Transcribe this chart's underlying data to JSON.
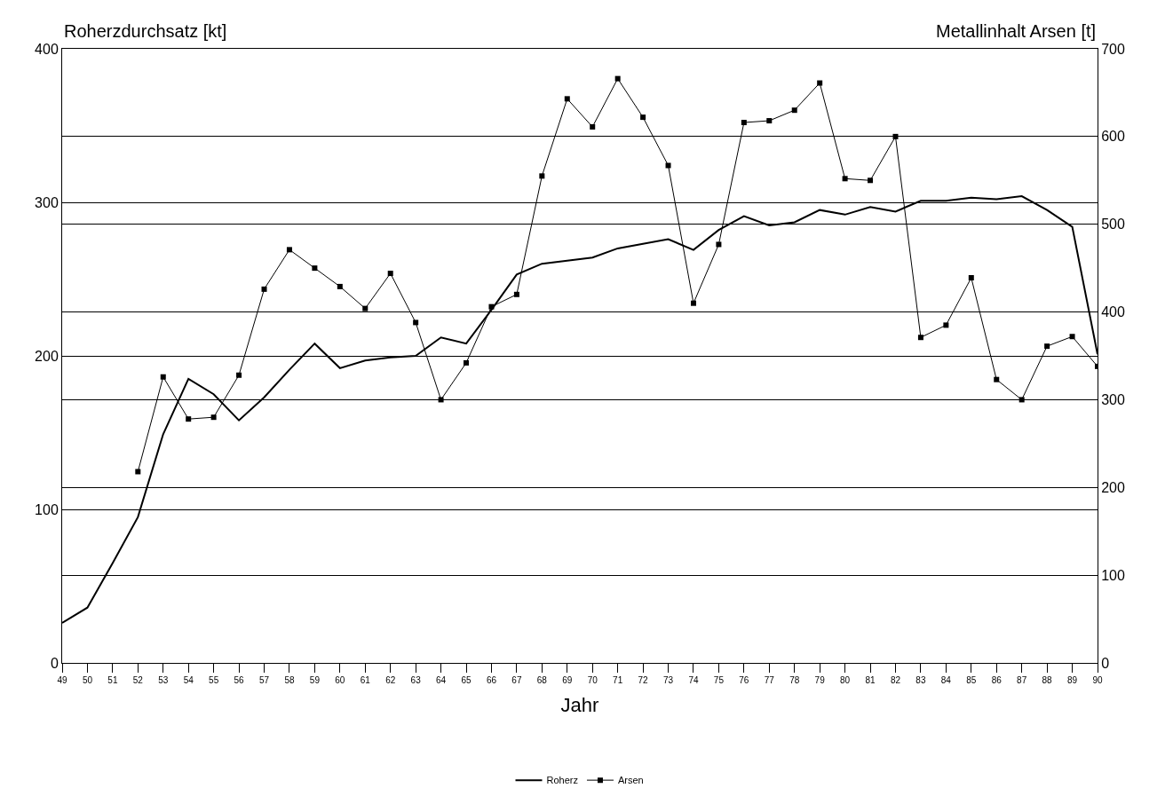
{
  "chart_data": {
    "type": "line",
    "xlabel": "Jahr",
    "ylabel": "Roherzdurchsatz [kt]",
    "y2label": "Metallinhalt Arsen [t]",
    "x": [
      49,
      50,
      51,
      52,
      53,
      54,
      55,
      56,
      57,
      58,
      59,
      60,
      61,
      62,
      63,
      64,
      65,
      66,
      67,
      68,
      69,
      70,
      71,
      72,
      73,
      74,
      75,
      76,
      77,
      78,
      79,
      80,
      81,
      82,
      83,
      84,
      85,
      86,
      87,
      88,
      89,
      90
    ],
    "series": [
      {
        "name": "Roherz",
        "color": "#000000",
        "marker": "none",
        "values": [
          26,
          36,
          65,
          95,
          149,
          185,
          175,
          158,
          173,
          191,
          208,
          192,
          197,
          199,
          200,
          212,
          208,
          230,
          253,
          260,
          262,
          264,
          270,
          273,
          276,
          269,
          282,
          291,
          285,
          287,
          295,
          292,
          297,
          294,
          301,
          301,
          303,
          302,
          304,
          295,
          284,
          201
        ]
      },
      {
        "name": "Arsen",
        "color": "#000000",
        "marker": "square",
        "axis": "y2",
        "values": [
          null,
          null,
          null,
          218,
          326,
          278,
          280,
          328,
          426,
          471,
          450,
          429,
          404,
          444,
          388,
          300,
          342,
          406,
          420,
          555,
          643,
          611,
          666,
          622,
          567,
          410,
          477,
          616,
          618,
          630,
          661,
          552,
          550,
          600,
          371,
          385,
          439,
          323,
          300,
          361,
          372,
          338
        ]
      }
    ],
    "xlim": [
      49,
      90
    ],
    "xticks": [
      49,
      50,
      51,
      52,
      53,
      54,
      55,
      56,
      57,
      58,
      59,
      60,
      61,
      62,
      63,
      64,
      65,
      66,
      67,
      68,
      69,
      70,
      71,
      72,
      73,
      74,
      75,
      76,
      77,
      78,
      79,
      80,
      81,
      82,
      83,
      84,
      85,
      86,
      87,
      88,
      89,
      90
    ],
    "ylim": [
      0,
      400
    ],
    "yticks": [
      0,
      100,
      200,
      300,
      400
    ],
    "y2lim": [
      0,
      700
    ],
    "y2ticks": [
      0,
      100,
      200,
      300,
      400,
      500,
      600,
      700
    ],
    "grid": "y",
    "legend": "bottom"
  }
}
